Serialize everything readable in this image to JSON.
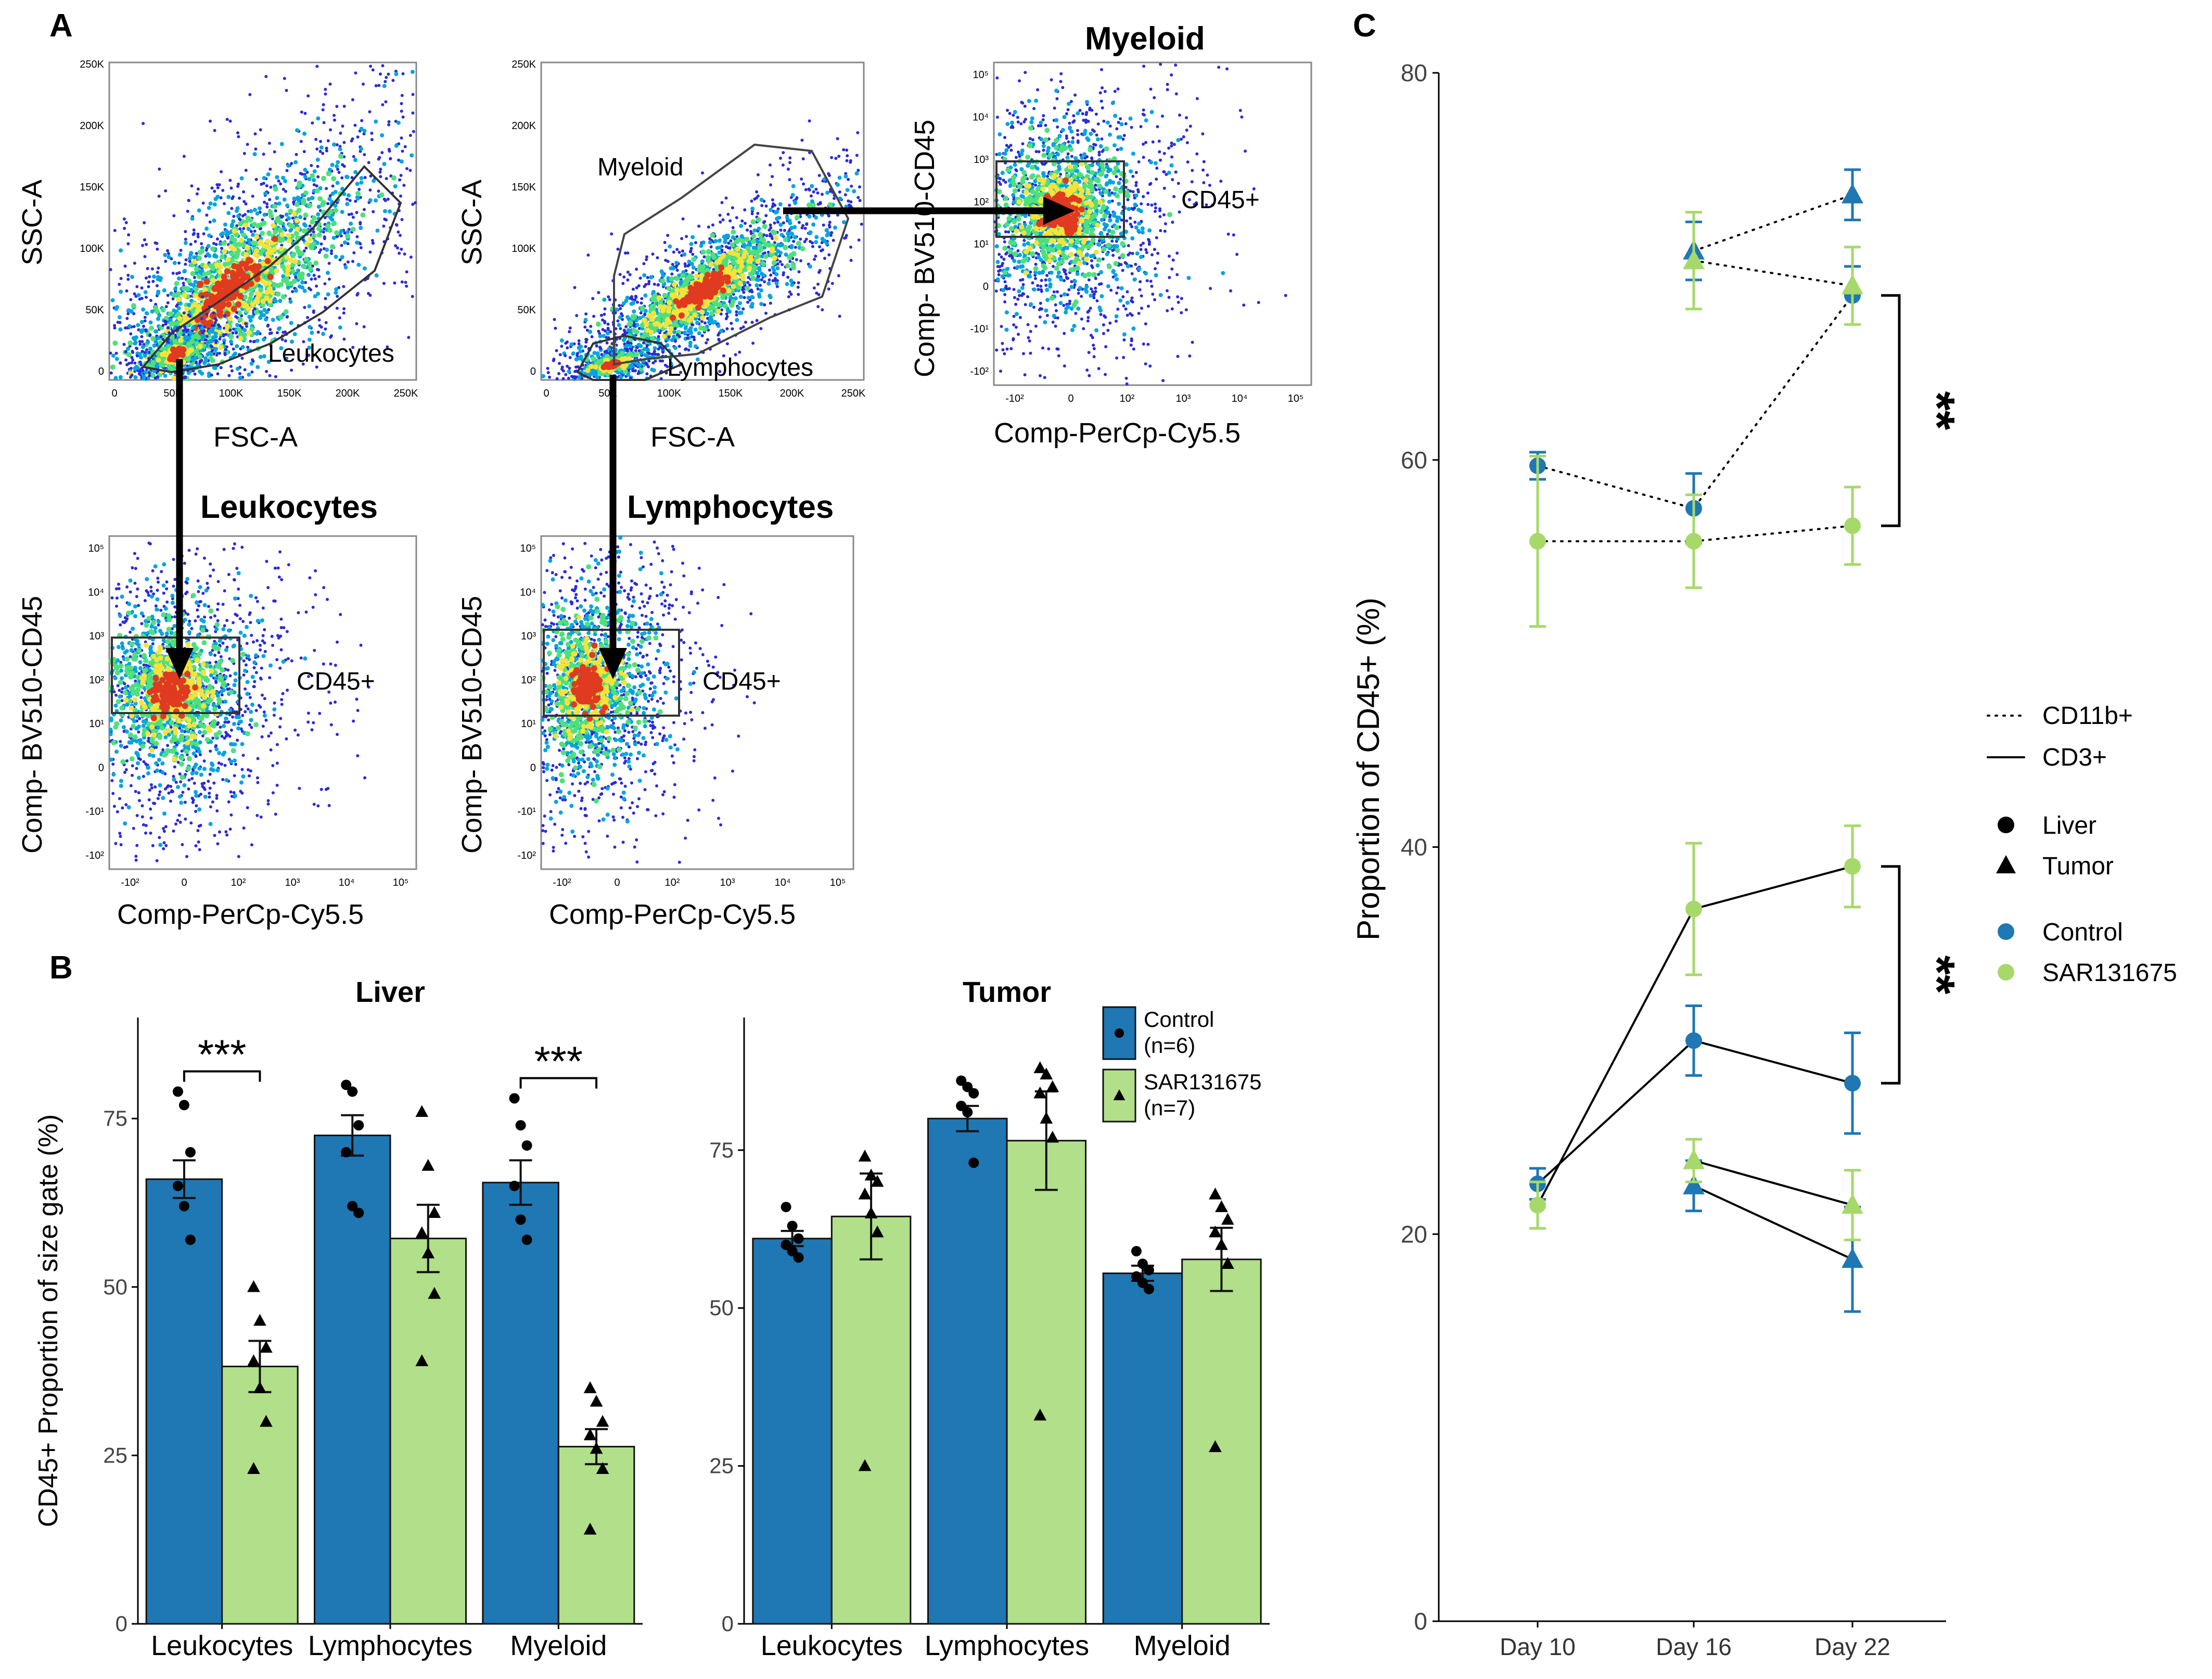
{
  "panel_labels": {
    "a": "A",
    "b": "B",
    "c": "C"
  },
  "flow": {
    "p1": {
      "ylabel": "SSC-A",
      "xlabel": "FSC-A",
      "gate": "Leukocytes",
      "yticks": [
        "250K",
        "200K",
        "150K",
        "100K",
        "50K",
        "0"
      ],
      "xticks": [
        "0",
        "50K",
        "100K",
        "150K",
        "200K",
        "250K"
      ]
    },
    "p2": {
      "ylabel": "SSC-A",
      "xlabel": "FSC-A",
      "gate_myeloid": "Myeloid",
      "gate_lymph": "Lymphocytes",
      "yticks": [
        "250K",
        "200K",
        "150K",
        "100K",
        "50K",
        "0"
      ],
      "xticks": [
        "0",
        "50K",
        "100K",
        "150K",
        "200K",
        "250K"
      ]
    },
    "p3": {
      "title": "Myeloid",
      "ylabel": "Comp- BV510-CD45",
      "xlabel": "Comp-PerCp-Cy5.5",
      "gate": "CD45+"
    },
    "p4": {
      "title": "Leukocytes",
      "ylabel": "Comp- BV510-CD45",
      "xlabel": "Comp-PerCp-Cy5.5",
      "gate": "CD45+"
    },
    "p5": {
      "title": "Lymphocytes",
      "ylabel": "Comp- BV510-CD45",
      "xlabel": "Comp-PerCp-Cy5.5",
      "gate": "CD45+"
    },
    "logticks_y": [
      "10⁵",
      "10⁴",
      "10³",
      "10²",
      "10¹",
      "0",
      "-10¹",
      "-10²"
    ],
    "logticks_x": [
      "-10²",
      "0",
      "10²",
      "10³",
      "10⁴",
      "10⁵"
    ]
  },
  "chart_data": [
    {
      "id": "B-liver",
      "type": "bar",
      "title": "Liver",
      "ylabel": "CD45+ Proportion of size gate (%)",
      "categories": [
        "Leukocytes",
        "Lymphocytes",
        "Myeloid"
      ],
      "ylim": [
        0,
        90
      ],
      "yticks": [
        0,
        25,
        50,
        75
      ],
      "series": [
        {
          "name": "Control",
          "values": [
            66,
            72.5,
            65.5
          ],
          "sem": [
            2.8,
            3,
            3.3
          ],
          "points": [
            [
              79,
              77,
              70,
              65,
              62,
              57
            ],
            [
              80,
              79,
              74,
              70,
              62,
              61
            ],
            [
              78,
              74,
              71,
              65,
              60,
              57
            ]
          ]
        },
        {
          "name": "SAR131675",
          "values": [
            38.2,
            57.2,
            26.3
          ],
          "sem": [
            3.8,
            5,
            2.6
          ],
          "points": [
            [
              50,
              45,
              41,
              39,
              35,
              30,
              23
            ],
            [
              76,
              68,
              61,
              58,
              55,
              49,
              39
            ],
            [
              35,
              33,
              30,
              28,
              26,
              23,
              14
            ]
          ]
        }
      ],
      "significance": [
        {
          "label": "***",
          "category": "Leukocytes"
        },
        {
          "label": "***",
          "category": "Myeloid"
        }
      ]
    },
    {
      "id": "B-tumor",
      "type": "bar",
      "title": "Tumor",
      "categories": [
        "Leukocytes",
        "Lymphocytes",
        "Myeloid"
      ],
      "ylim": [
        0,
        96
      ],
      "yticks": [
        0,
        25,
        50,
        75
      ],
      "series": [
        {
          "name": "Control",
          "legend": "Control",
          "legend_n": "(n=6)",
          "values": [
            61,
            80,
            55.5
          ],
          "sem": [
            1.2,
            2,
            1.2
          ],
          "points": [
            [
              66,
              63,
              61,
              60,
              59,
              58
            ],
            [
              86,
              85,
              84,
              82,
              81,
              73
            ],
            [
              59,
              57,
              56,
              55,
              54,
              53
            ]
          ]
        },
        {
          "name": "SAR131675",
          "legend": "SAR131675",
          "legend_n": "(n=7)",
          "values": [
            64.5,
            76.5,
            57.7
          ],
          "sem": [
            6.8,
            7.8,
            5
          ],
          "points": [
            [
              74,
              71,
              70,
              68,
              65,
              62,
              25
            ],
            [
              88,
              87,
              85,
              84,
              80,
              77,
              33
            ],
            [
              68,
              66,
              64,
              62,
              60,
              57,
              28
            ]
          ]
        }
      ]
    },
    {
      "id": "C",
      "type": "line",
      "ylabel": "Proportion of CD45+ (%)",
      "x": [
        "Day 10",
        "Day 16",
        "Day 22"
      ],
      "ylim": [
        0,
        80
      ],
      "yticks": [
        0,
        20,
        40,
        60,
        80
      ],
      "series": [
        {
          "name": "CD11b+ Liver Control",
          "marker": "circle",
          "group": "Control",
          "line": "dotted",
          "values": [
            59.7,
            57.5,
            68.5
          ],
          "err": [
            0.7,
            1.8,
            1.5
          ]
        },
        {
          "name": "CD11b+ Liver SAR131675",
          "marker": "circle",
          "group": "SAR131675",
          "line": "dotted",
          "values": [
            55.8,
            55.8,
            56.6
          ],
          "err": [
            4.4,
            2.4,
            2
          ]
        },
        {
          "name": "CD11b+ Tumor Control",
          "marker": "triangle",
          "group": "Control",
          "line": "dotted",
          "values": [
            null,
            70.8,
            73.7
          ],
          "err": [
            0,
            1.5,
            1.3
          ]
        },
        {
          "name": "CD11b+ Tumor SAR131675",
          "marker": "triangle",
          "group": "SAR131675",
          "line": "dotted",
          "values": [
            null,
            70.3,
            69
          ],
          "err": [
            0,
            2.5,
            2
          ]
        },
        {
          "name": "CD3+ Liver Control",
          "marker": "circle",
          "group": "Control",
          "line": "solid",
          "values": [
            22.6,
            30,
            27.8
          ],
          "err": [
            0.8,
            1.8,
            2.6
          ]
        },
        {
          "name": "CD3+ Liver SAR131675",
          "marker": "circle",
          "group": "SAR131675",
          "line": "solid",
          "values": [
            21.5,
            36.8,
            39
          ],
          "err": [
            1.2,
            3.4,
            2.1
          ]
        },
        {
          "name": "CD3+ Tumor Control",
          "marker": "triangle",
          "group": "Control",
          "line": "solid",
          "values": [
            null,
            22.5,
            18.7
          ],
          "err": [
            0,
            1.3,
            2.7
          ]
        },
        {
          "name": "CD3+ Tumor SAR131675",
          "marker": "triangle",
          "group": "SAR131675",
          "line": "solid",
          "values": [
            null,
            23.8,
            21.5
          ],
          "err": [
            0,
            1.1,
            1.8
          ]
        }
      ],
      "significance": [
        {
          "label": "**",
          "between": [
            56.6,
            68.5
          ]
        },
        {
          "label": "**",
          "between": [
            27.8,
            39
          ]
        }
      ],
      "legend": {
        "line_types": [
          "CD11b+",
          "CD3+"
        ],
        "shapes": [
          "Liver",
          "Tumor"
        ],
        "groups": [
          "Control",
          "SAR131675"
        ]
      }
    }
  ],
  "colors": {
    "control": "#1f77b4",
    "sar": "#b2df8a",
    "sar_point": "#a6d96a",
    "axis": "#333333"
  }
}
